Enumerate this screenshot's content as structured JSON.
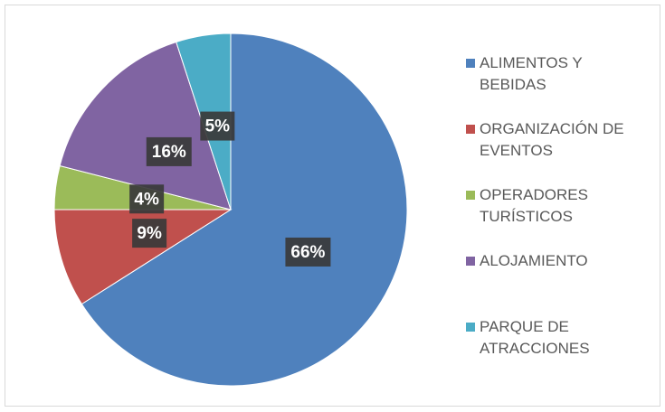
{
  "chart_data": {
    "type": "pie",
    "categories": [
      "ALIMENTOS Y BEBIDAS",
      "ORGANIZACIÓN DE EVENTOS",
      "OPERADORES TURÍSTICOS",
      "ALOJAMIENTO",
      "PARQUE DE ATRACCIONES"
    ],
    "values": [
      66,
      9,
      4,
      16,
      5
    ],
    "value_labels": [
      "66%",
      "9%",
      "4%",
      "16%",
      "5%"
    ],
    "colors": [
      "#4f81bd",
      "#c0504d",
      "#9bbb59",
      "#8064a2",
      "#4bacc6"
    ],
    "legend": "right"
  }
}
